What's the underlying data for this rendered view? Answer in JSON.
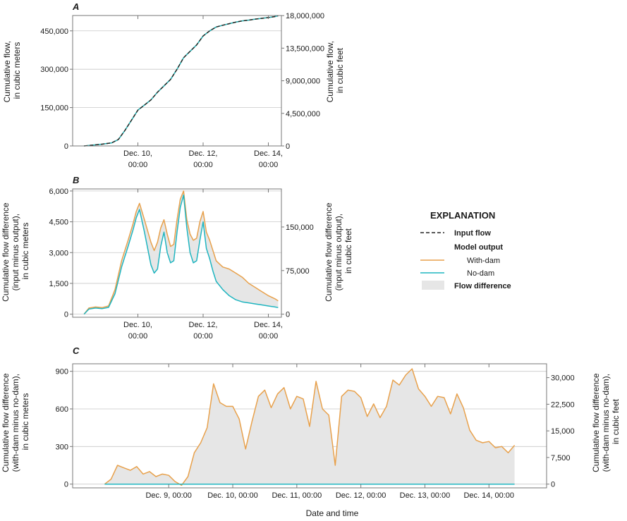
{
  "colors": {
    "with_dam": "#e8a14c",
    "no_dam": "#1fb5c0",
    "input": "#222222",
    "difference_fill": "#e6e6e6",
    "grid": "#c8c8c8",
    "axis": "#777777"
  },
  "legend": {
    "title": "EXPLANATION",
    "input_flow": "Input flow",
    "model_output": "Model output",
    "with_dam": "With-dam",
    "no_dam": "No-dam",
    "flow_difference": "Flow difference"
  },
  "chart_data": [
    {
      "panel": "A",
      "type": "line",
      "title": "A",
      "xlim": [
        0.0,
        6.4
      ],
      "ylabel": [
        "Cumulative flow,",
        "in cubic meters"
      ],
      "ylabel_right": [
        "Cumulative flow,",
        "in cubic feet"
      ],
      "ylim": [
        0,
        510000
      ],
      "yticks": [
        0,
        150000,
        300000,
        450000
      ],
      "ytick_labels": [
        "0",
        "150,000",
        "300,000",
        "450,000"
      ],
      "yticks_right": [
        0,
        4500000,
        9000000,
        13500000,
        18000000
      ],
      "ytick_labels_right": [
        "0",
        "4,500,000",
        "9,000,000",
        "13,500,000",
        "18,000,000"
      ],
      "xticks": [
        2,
        4,
        6
      ],
      "xtick_labels": [
        [
          "Dec. 10,",
          "00:00"
        ],
        [
          "Dec. 12,",
          "00:00"
        ],
        [
          "Dec. 14,",
          "00:00"
        ]
      ],
      "series": [
        {
          "name": "With-dam",
          "x": [
            0.35,
            0.6,
            0.9,
            1.2,
            1.4,
            1.6,
            1.8,
            2.0,
            2.2,
            2.4,
            2.6,
            2.8,
            3.0,
            3.2,
            3.4,
            3.6,
            3.8,
            4.0,
            4.2,
            4.4,
            4.6,
            4.8,
            5.0,
            5.2,
            5.4,
            5.6,
            5.8,
            6.0,
            6.2,
            6.3
          ],
          "values": [
            0,
            3000,
            7000,
            12000,
            25000,
            60000,
            100000,
            140000,
            160000,
            180000,
            210000,
            235000,
            260000,
            300000,
            345000,
            370000,
            395000,
            430000,
            450000,
            465000,
            472000,
            478000,
            484000,
            489000,
            492000,
            496000,
            499000,
            502000,
            506000,
            509000
          ]
        },
        {
          "name": "No-dam",
          "x": [
            0.35,
            0.6,
            0.9,
            1.2,
            1.4,
            1.6,
            1.8,
            2.0,
            2.2,
            2.4,
            2.6,
            2.8,
            3.0,
            3.2,
            3.4,
            3.6,
            3.8,
            4.0,
            4.2,
            4.4,
            4.6,
            4.8,
            5.0,
            5.2,
            5.4,
            5.6,
            5.8,
            6.0,
            6.2,
            6.3
          ],
          "values": [
            0,
            3000,
            7000,
            12000,
            25000,
            60000,
            100000,
            140000,
            160000,
            180000,
            210000,
            235000,
            260000,
            300000,
            345000,
            370000,
            395000,
            430000,
            450000,
            465000,
            472000,
            478000,
            484000,
            489000,
            492000,
            496000,
            499000,
            502000,
            506000,
            509000
          ]
        },
        {
          "name": "Input flow",
          "style": "dashed",
          "x": [
            0.35,
            0.6,
            0.9,
            1.2,
            1.4,
            1.6,
            1.8,
            2.0,
            2.2,
            2.4,
            2.6,
            2.8,
            3.0,
            3.2,
            3.4,
            3.6,
            3.8,
            4.0,
            4.2,
            4.4,
            4.6,
            4.8,
            5.0,
            5.2,
            5.4,
            5.6,
            5.8,
            6.0,
            6.2,
            6.3
          ],
          "values": [
            0,
            3000,
            7000,
            12000,
            25000,
            60000,
            100000,
            140000,
            160000,
            180000,
            210000,
            235000,
            260000,
            300000,
            345000,
            370000,
            395000,
            430000,
            450000,
            465000,
            472000,
            478000,
            484000,
            489000,
            492000,
            496000,
            499000,
            502000,
            506000,
            509000
          ]
        }
      ]
    },
    {
      "panel": "B",
      "type": "area",
      "title": "B",
      "xlim": [
        0.0,
        6.4
      ],
      "ylabel": [
        "Cumulative flow difference",
        "(input minus output),",
        "in cubic meters"
      ],
      "ylabel_right": [
        "Cumulative flow difference",
        "(input  minus output),",
        "in cubic feet"
      ],
      "ylim": [
        -150,
        6100
      ],
      "yticks": [
        0,
        1500,
        3000,
        4500,
        6000
      ],
      "ytick_labels": [
        "0",
        "1,500",
        "3,000",
        "4,500",
        "6,000"
      ],
      "yticks_right": [
        0,
        75000,
        150000
      ],
      "ytick_labels_right": [
        "0",
        "75,000",
        "150,000"
      ],
      "right_axis_factor": 35.3147,
      "xticks": [
        2,
        4,
        6
      ],
      "xtick_labels": [
        [
          "Dec. 10,",
          "00:00"
        ],
        [
          "Dec. 12,",
          "00:00"
        ],
        [
          "Dec. 14,",
          "00:00"
        ]
      ],
      "series": [
        {
          "name": "With-dam",
          "x": [
            0.35,
            0.5,
            0.7,
            0.9,
            1.1,
            1.3,
            1.5,
            1.7,
            1.85,
            1.95,
            2.05,
            2.2,
            2.4,
            2.5,
            2.6,
            2.7,
            2.8,
            2.9,
            3.0,
            3.1,
            3.2,
            3.3,
            3.4,
            3.5,
            3.6,
            3.7,
            3.8,
            3.9,
            4.0,
            4.1,
            4.2,
            4.3,
            4.4,
            4.6,
            4.8,
            5.0,
            5.2,
            5.4,
            5.6,
            5.8,
            6.0,
            6.2,
            6.3
          ],
          "values": [
            0,
            300,
            350,
            320,
            400,
            1200,
            2600,
            3600,
            4400,
            5000,
            5400,
            4600,
            3500,
            3100,
            3500,
            4200,
            4600,
            3900,
            3300,
            3400,
            4600,
            5600,
            6000,
            4600,
            3900,
            3600,
            3700,
            4500,
            5000,
            4000,
            3600,
            3100,
            2600,
            2300,
            2200,
            2000,
            1800,
            1500,
            1300,
            1100,
            900,
            750,
            650
          ]
        },
        {
          "name": "No-dam",
          "x": [
            0.35,
            0.5,
            0.7,
            0.9,
            1.1,
            1.3,
            1.5,
            1.7,
            1.85,
            1.95,
            2.05,
            2.2,
            2.4,
            2.5,
            2.6,
            2.7,
            2.8,
            2.9,
            3.0,
            3.1,
            3.2,
            3.3,
            3.4,
            3.5,
            3.6,
            3.7,
            3.8,
            3.9,
            4.0,
            4.1,
            4.2,
            4.3,
            4.4,
            4.6,
            4.8,
            5.0,
            5.2,
            5.4,
            5.6,
            5.8,
            6.0,
            6.2,
            6.3
          ],
          "values": [
            0,
            250,
            300,
            270,
            330,
            1000,
            2300,
            3300,
            4100,
            4700,
            5100,
            4000,
            2400,
            2000,
            2200,
            3300,
            4000,
            3000,
            2500,
            2600,
            4000,
            5200,
            5800,
            4200,
            3000,
            2500,
            2600,
            3600,
            4500,
            3200,
            2700,
            2100,
            1600,
            1200,
            900,
            700,
            600,
            550,
            500,
            450,
            400,
            350,
            320
          ]
        }
      ]
    },
    {
      "panel": "C",
      "type": "area",
      "title": "C",
      "xlim": [
        0.0,
        7.4
      ],
      "xlabel": "Date and time",
      "ylabel": [
        "Cumulative flow difference",
        "(with-dam minus no-dam),",
        "in cubic meters"
      ],
      "ylabel_right": [
        "Cumulative flow difference",
        "(with-dam minus no-dam),",
        "in cubic feet"
      ],
      "ylim": [
        -30,
        960
      ],
      "yticks": [
        0,
        300,
        600,
        900
      ],
      "ytick_labels": [
        "0",
        "300",
        "600",
        "900"
      ],
      "yticks_right": [
        0,
        7500,
        15000,
        22500,
        30000
      ],
      "ytick_labels_right": [
        "0",
        "7,500",
        "15,000",
        "22,500",
        "30,000"
      ],
      "right_axis_factor": 35.3147,
      "xticks": [
        1.5,
        2.5,
        3.5,
        4.5,
        5.5,
        6.5
      ],
      "xtick_labels": [
        "Dec. 9, 00:00",
        "Dec. 10, 00:00",
        "Dec. 11, 00:00",
        "Dec. 12, 00:00",
        "Dec. 13, 00:00",
        "Dec. 14, 00:00"
      ],
      "series": [
        {
          "name": "With-dam",
          "x": [
            0.5,
            0.6,
            0.7,
            0.8,
            0.9,
            1.0,
            1.1,
            1.2,
            1.3,
            1.4,
            1.5,
            1.6,
            1.7,
            1.8,
            1.9,
            2.0,
            2.1,
            2.2,
            2.3,
            2.4,
            2.5,
            2.6,
            2.7,
            2.8,
            2.9,
            3.0,
            3.1,
            3.2,
            3.3,
            3.4,
            3.5,
            3.6,
            3.7,
            3.8,
            3.9,
            4.0,
            4.1,
            4.2,
            4.3,
            4.4,
            4.5,
            4.6,
            4.7,
            4.8,
            4.9,
            5.0,
            5.1,
            5.2,
            5.3,
            5.4,
            5.5,
            5.6,
            5.7,
            5.8,
            5.9,
            6.0,
            6.1,
            6.2,
            6.3,
            6.4,
            6.5,
            6.6,
            6.7,
            6.8,
            6.9
          ],
          "values": [
            0,
            40,
            150,
            130,
            110,
            140,
            80,
            100,
            60,
            80,
            70,
            20,
            -10,
            60,
            250,
            330,
            450,
            800,
            650,
            620,
            620,
            520,
            280,
            500,
            700,
            750,
            610,
            720,
            770,
            600,
            700,
            680,
            460,
            820,
            600,
            550,
            150,
            700,
            750,
            740,
            690,
            540,
            640,
            530,
            620,
            830,
            790,
            870,
            920,
            760,
            700,
            620,
            700,
            690,
            560,
            720,
            610,
            430,
            350,
            330,
            340,
            290,
            300,
            250,
            310
          ]
        },
        {
          "name": "No-dam",
          "x": [
            0.5,
            6.9
          ],
          "values": [
            0,
            0
          ]
        }
      ]
    }
  ]
}
